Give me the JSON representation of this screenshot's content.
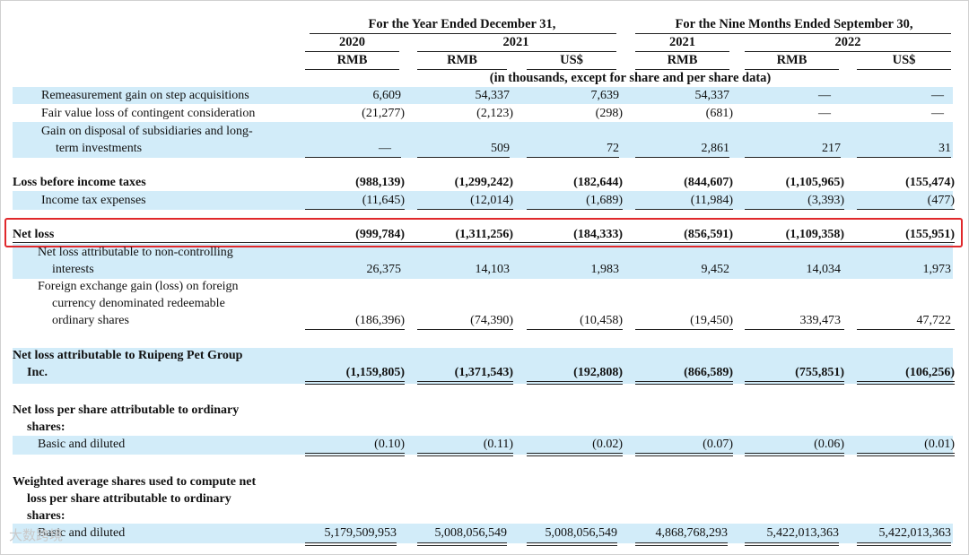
{
  "header": {
    "year_group": "For the Year Ended December 31,",
    "nine_month_group": "For the Nine Months Ended September 30,",
    "year_2020": "2020",
    "year_2021": "2021",
    "nm_2021": "2021",
    "nm_2022": "2022",
    "currency": [
      "RMB",
      "RMB",
      "US$",
      "RMB",
      "RMB",
      "US$"
    ],
    "units_note": "(in thousands, except for share and per share data)"
  },
  "rows": {
    "remeasurement": {
      "label": "Remeasurement gain on step acquisitions",
      "values": [
        "6,609",
        "54,337",
        "7,639",
        "54,337",
        "—",
        "—"
      ]
    },
    "fair_value": {
      "label": "Fair value loss of contingent consideration",
      "values": [
        "(21,277)",
        "(2,123)",
        "(298)",
        "(681)",
        "—",
        "—"
      ]
    },
    "gain_disposal": {
      "label_line1": "Gain on disposal of subsidiaries and long-",
      "label_line2": "term investments",
      "values": [
        "—",
        "509",
        "72",
        "2,861",
        "217",
        "31"
      ]
    },
    "loss_before_tax": {
      "label": "Loss before income taxes",
      "values": [
        "(988,139)",
        "(1,299,242)",
        "(182,644)",
        "(844,607)",
        "(1,105,965)",
        "(155,474)"
      ]
    },
    "income_tax": {
      "label": "Income tax expenses",
      "values": [
        "(11,645)",
        "(12,014)",
        "(1,689)",
        "(11,984)",
        "(3,393)",
        "(477)"
      ]
    },
    "net_loss": {
      "label": "Net loss",
      "values": [
        "(999,784)",
        "(1,311,256)",
        "(184,333)",
        "(856,591)",
        "(1,109,358)",
        "(155,951)"
      ]
    },
    "nci": {
      "label_line1": "Net loss attributable to non-controlling",
      "label_line2": "interests",
      "values": [
        "26,375",
        "14,103",
        "1,983",
        "9,452",
        "14,034",
        "1,973"
      ]
    },
    "fx": {
      "label_line1": "Foreign exchange gain (loss) on foreign",
      "label_line2": "currency denominated redeemable",
      "label_line3": "ordinary shares",
      "values": [
        "(186,396)",
        "(74,390)",
        "(10,458)",
        "(19,450)",
        "339,473",
        "47,722"
      ]
    },
    "net_loss_group": {
      "label_line1": "Net loss attributable to Ruipeng Pet Group",
      "label_line2": "Inc.",
      "values": [
        "(1,159,805)",
        "(1,371,543)",
        "(192,808)",
        "(866,589)",
        "(755,851)",
        "(106,256)"
      ]
    },
    "eps_heading": {
      "label_line1": "Net loss per share attributable to ordinary",
      "label_line2": "shares:"
    },
    "eps_basic": {
      "label": "Basic and diluted",
      "values": [
        "(0.10)",
        "(0.11)",
        "(0.02)",
        "(0.07)",
        "(0.06)",
        "(0.01)"
      ]
    },
    "wavg_heading": {
      "label_line1": "Weighted average shares used to compute net",
      "label_line2": "loss per share attributable to ordinary",
      "label_line3": "shares:"
    },
    "wavg_basic": {
      "label": "Basic and diluted",
      "values": [
        "5,179,509,953",
        "5,008,056,549",
        "5,008,056,549",
        "4,868,768,293",
        "5,422,013,363",
        "5,422,013,363"
      ]
    }
  },
  "watermark": "大数跨境"
}
